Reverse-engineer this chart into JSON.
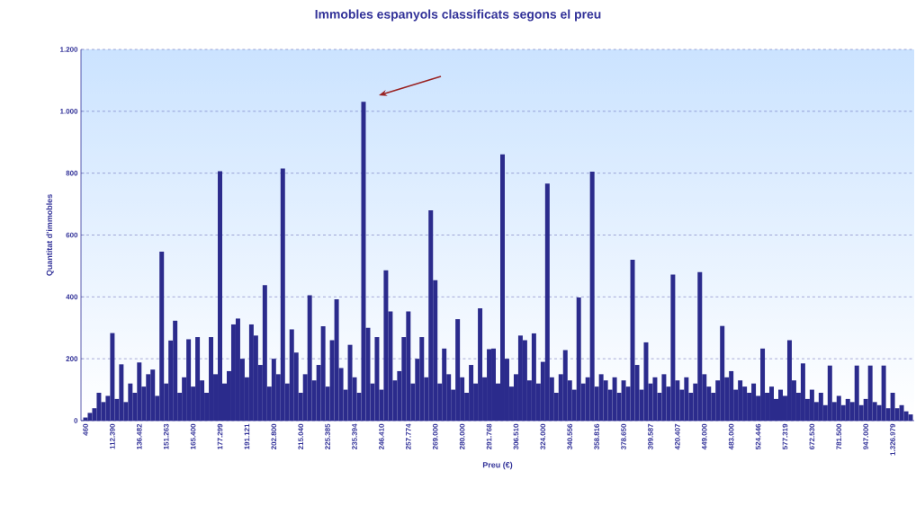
{
  "chart_data": {
    "type": "bar",
    "title": "Immobles espanyols classificats segons el preu",
    "xlabel": "Preu (€)",
    "ylabel": "Quantitat d'immobles",
    "categories": [
      "460",
      null,
      null,
      null,
      null,
      null,
      "112.390",
      null,
      null,
      null,
      null,
      null,
      "136.482",
      null,
      null,
      null,
      null,
      null,
      "151.263",
      null,
      null,
      null,
      null,
      null,
      "165.400",
      null,
      null,
      null,
      null,
      null,
      "177.299",
      null,
      null,
      null,
      null,
      null,
      "191.121",
      null,
      null,
      null,
      null,
      null,
      "202.800",
      null,
      null,
      null,
      null,
      null,
      "215.040",
      null,
      null,
      null,
      null,
      null,
      "225.385",
      null,
      null,
      null,
      null,
      null,
      "235.394",
      null,
      null,
      null,
      null,
      null,
      "246.410",
      null,
      null,
      null,
      null,
      null,
      "257.774",
      null,
      null,
      null,
      null,
      null,
      "269.000",
      null,
      null,
      null,
      null,
      null,
      "280.000",
      null,
      null,
      null,
      null,
      null,
      "291.768",
      null,
      null,
      null,
      null,
      null,
      "306.510",
      null,
      null,
      null,
      null,
      null,
      "324.000",
      null,
      null,
      null,
      null,
      null,
      "340.556",
      null,
      null,
      null,
      null,
      null,
      "358.816",
      null,
      null,
      null,
      null,
      null,
      "378.650",
      null,
      null,
      null,
      null,
      null,
      "399.587",
      null,
      null,
      null,
      null,
      null,
      "420.407",
      null,
      null,
      null,
      null,
      null,
      "449.000",
      null,
      null,
      null,
      null,
      null,
      "483.000",
      null,
      null,
      null,
      null,
      null,
      "524.446",
      null,
      null,
      null,
      null,
      null,
      "577.319",
      null,
      null,
      null,
      null,
      null,
      "672.530",
      null,
      null,
      null,
      null,
      null,
      "781.500",
      null,
      null,
      null,
      null,
      null,
      "947.000",
      null,
      null,
      null,
      null,
      null,
      "1.326.979",
      null,
      null,
      null,
      null
    ],
    "values": [
      10,
      25,
      40,
      90,
      60,
      80,
      283,
      70,
      182,
      60,
      120,
      90,
      188,
      110,
      150,
      165,
      80,
      546,
      120,
      259,
      323,
      90,
      140,
      263,
      110,
      270,
      130,
      90,
      270,
      150,
      806,
      120,
      160,
      311,
      330,
      200,
      140,
      311,
      275,
      180,
      438,
      110,
      200,
      150,
      815,
      120,
      295,
      220,
      90,
      150,
      405,
      130,
      180,
      305,
      110,
      260,
      392,
      170,
      100,
      245,
      140,
      90,
      1031,
      300,
      120,
      270,
      100,
      486,
      353,
      130,
      160,
      270,
      353,
      120,
      200,
      270,
      140,
      680,
      454,
      120,
      233,
      150,
      100,
      328,
      140,
      90,
      180,
      120,
      363,
      140,
      231,
      233,
      120,
      861,
      200,
      110,
      150,
      275,
      260,
      130,
      282,
      120,
      190,
      766,
      140,
      90,
      150,
      228,
      130,
      100,
      398,
      120,
      140,
      805,
      110,
      150,
      130,
      100,
      140,
      90,
      130,
      110,
      520,
      180,
      100,
      253,
      120,
      140,
      90,
      150,
      110,
      472,
      130,
      100,
      140,
      90,
      120,
      480,
      150,
      110,
      90,
      130,
      306,
      140,
      160,
      100,
      130,
      110,
      90,
      120,
      80,
      233,
      90,
      110,
      70,
      100,
      80,
      260,
      130,
      90,
      185,
      70,
      100,
      60,
      90,
      50,
      178,
      60,
      80,
      50,
      70,
      60,
      178,
      50,
      70,
      178,
      60,
      50,
      178,
      40,
      90,
      40,
      50,
      30,
      20
    ],
    "color": "#2b2b8c",
    "ylim": [
      0,
      1200
    ],
    "yticks": [
      0,
      200,
      400,
      600,
      800,
      {
        "value": 1000,
        "label": "1.000"
      },
      {
        "value": 1200,
        "label": "1.200"
      }
    ],
    "grid": "y"
  }
}
